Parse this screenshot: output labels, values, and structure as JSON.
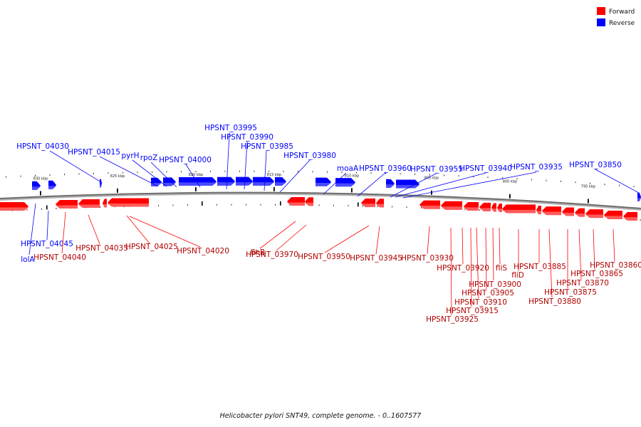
{
  "caption": "Helicobacter pylori SNT49, complete genome. - 0..1607577",
  "legend": [
    {
      "label": "Forward",
      "color": "#ff0000"
    },
    {
      "label": "Reverse",
      "color": "#0000ff"
    }
  ],
  "colors": {
    "forward_light": "#ff5a5a",
    "reverse_light": "#4a4aff",
    "backbone": "#7a7a7a"
  },
  "ticks": [
    "830 kbp",
    "825 kbp",
    "820 kbp",
    "815 kbp",
    "810 kbp",
    "805 kbp",
    "800 kbp",
    "795 kbp"
  ],
  "genes_reverse": [
    "HPSNT_04045",
    "lolA",
    "HPSNT_04030",
    "HPSNT_04015",
    "pyrH",
    "rpoZ",
    "HPSNT_04000",
    "HPSNT_03995",
    "HPSNT_03990",
    "HPSNT_03985",
    "HPSNT_03980",
    "moaA",
    "HPSNT_03960",
    "HPSNT_03955",
    "HPSNT_03940",
    "HPSNT_03935",
    "HPSNT_03850"
  ],
  "genes_forward": [
    "HPSNT_04040",
    "HPSNT_04035",
    "HPSNT_04025",
    "HPSNT_04020",
    "flhB",
    "HPSNT_03970",
    "HPSNT_03950",
    "HPSNT_03945",
    "HPSNT_03930",
    "HPSNT_03920",
    "HPSNT_03925",
    "HPSNT_03915",
    "HPSNT_03910",
    "HPSNT_03905",
    "HPSNT_03900",
    "fliS",
    "fliD",
    "HPSNT_03885",
    "HPSNT_03880",
    "HPSNT_03875",
    "HPSNT_03870",
    "HPSNT_03865",
    "HPSNT_03860"
  ]
}
